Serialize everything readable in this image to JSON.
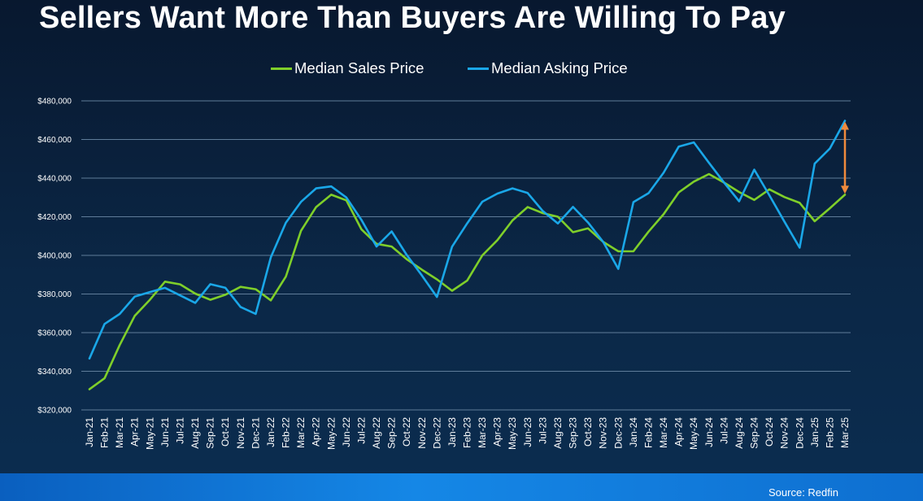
{
  "header": {
    "title": "Sellers Want More Than Buyers Are Willing To Pay"
  },
  "footer": {
    "source": "Source: Redfin"
  },
  "colors": {
    "sales": "#7fcf2a",
    "asking": "#1aa7e8",
    "arrow": "#f08a3c",
    "grid": "#5f7c99",
    "text": "#ffffff"
  },
  "chart_data": {
    "type": "line",
    "title": "Sellers Want More Than Buyers Are Willing To Pay",
    "xlabel": "",
    "ylabel": "",
    "ylim": [
      320000,
      480000
    ],
    "y_ticks": [
      320000,
      340000,
      360000,
      380000,
      400000,
      420000,
      440000,
      460000,
      480000
    ],
    "y_tick_labels": [
      "$320,000",
      "$340,000",
      "$360,000",
      "$380,000",
      "$400,000",
      "$420,000",
      "$440,000",
      "$460,000",
      "$480,000"
    ],
    "grid": true,
    "legend_position": "top-center",
    "categories": [
      "Jan-21",
      "Feb-21",
      "Mar-21",
      "Apr-21",
      "May-21",
      "Jun-21",
      "Jul-21",
      "Aug-21",
      "Sep-21",
      "Oct-21",
      "Nov-21",
      "Dec-21",
      "Jan-22",
      "Feb-22",
      "Mar-22",
      "Apr-22",
      "May-22",
      "Jun-22",
      "Jul-22",
      "Aug-22",
      "Sep-22",
      "Oct-22",
      "Nov-22",
      "Dec-22",
      "Jan-23",
      "Feb-23",
      "Mar-23",
      "Apr-23",
      "May-23",
      "Jun-23",
      "Jul-23",
      "Aug-23",
      "Sep-23",
      "Oct-23",
      "Nov-23",
      "Dec-23",
      "Jan-24",
      "Feb-24",
      "Mar-24",
      "Apr-24",
      "May-24",
      "Jun-24",
      "Jul-24",
      "Aug-24",
      "Sep-24",
      "Oct-24",
      "Nov-24",
      "Dec-24",
      "Jan-25",
      "Feb-25",
      "Mar-25"
    ],
    "series": [
      {
        "name": "Median Sales Price",
        "values": [
          330700,
          336400,
          353600,
          368700,
          377000,
          386400,
          385000,
          380200,
          377000,
          379600,
          383700,
          382500,
          376700,
          389000,
          412700,
          425000,
          431400,
          428500,
          413500,
          406000,
          404600,
          398000,
          392600,
          387600,
          381700,
          387000,
          400000,
          407900,
          418100,
          425000,
          421900,
          420000,
          412000,
          414000,
          407000,
          402100,
          402100,
          412300,
          421300,
          432600,
          438200,
          442100,
          437700,
          432800,
          428700,
          434200,
          430200,
          427200,
          417700,
          424400,
          431400
        ]
      },
      {
        "name": "Median Asking Price",
        "values": [
          346600,
          364500,
          369700,
          378700,
          381000,
          383200,
          379300,
          375400,
          385100,
          383200,
          373300,
          369700,
          399000,
          416900,
          427700,
          434700,
          435700,
          430000,
          418400,
          404600,
          412400,
          400200,
          389600,
          378500,
          404500,
          416600,
          427800,
          432000,
          434700,
          432300,
          423000,
          416500,
          425100,
          417000,
          407000,
          393000,
          427600,
          432200,
          442800,
          456300,
          458500,
          447900,
          437700,
          428000,
          444400,
          431100,
          417400,
          404000,
          447500,
          455300,
          469700
        ]
      }
    ],
    "annotation": {
      "type": "double-arrow",
      "category": "Mar-25",
      "from": 431400,
      "to": 469700
    }
  }
}
